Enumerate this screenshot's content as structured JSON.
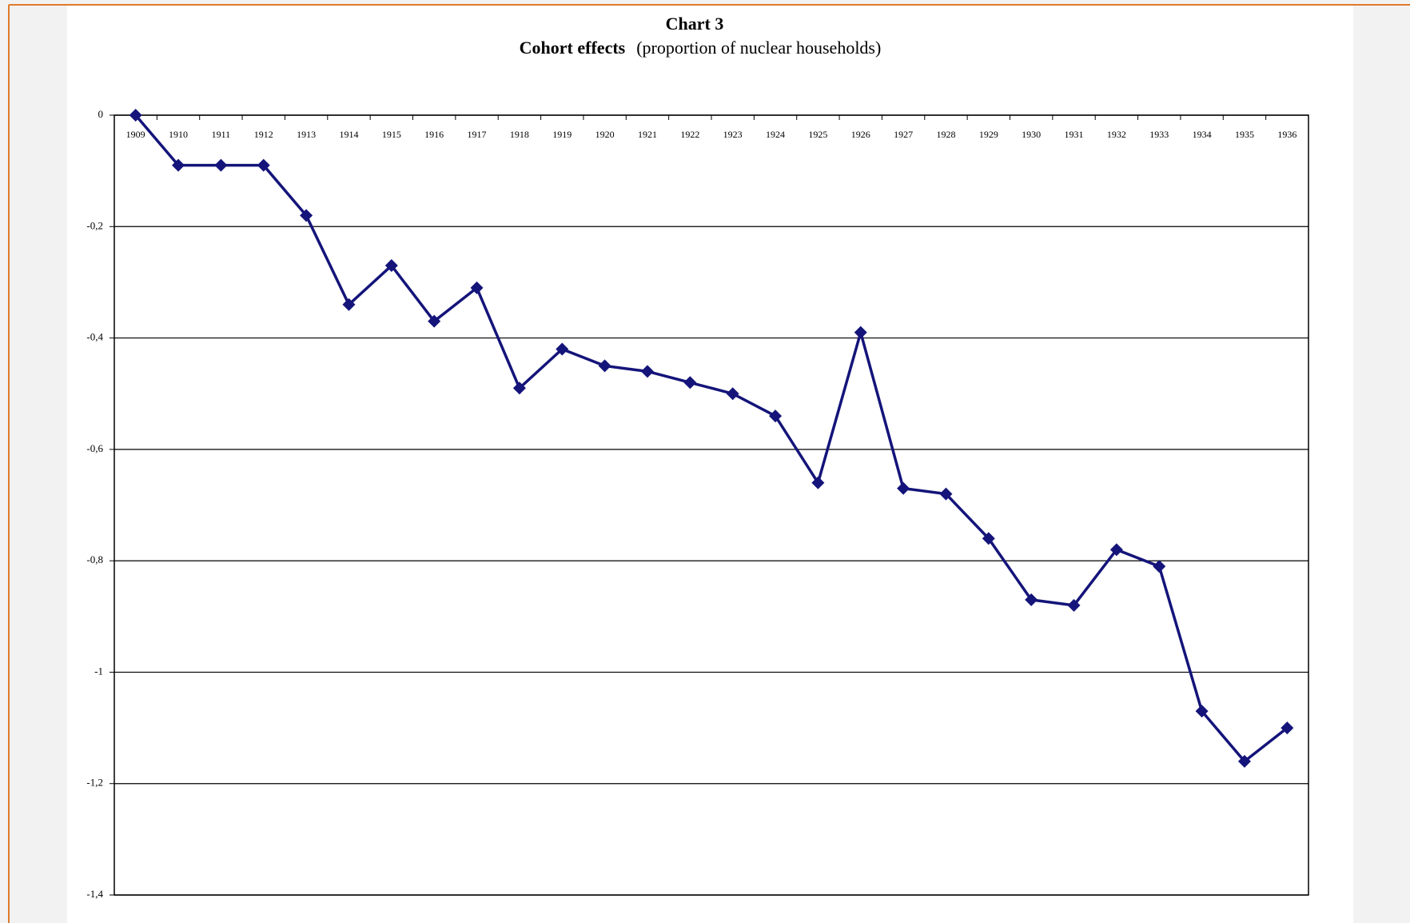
{
  "chart_data": {
    "type": "line",
    "title": "Chart 3",
    "subtitle_bold": "Cohort effects",
    "subtitle": "(proportion of nuclear households)",
    "categories": [
      "1909",
      "1910",
      "1911",
      "1912",
      "1913",
      "1914",
      "1915",
      "1916",
      "1917",
      "1918",
      "1919",
      "1920",
      "1921",
      "1922",
      "1923",
      "1924",
      "1925",
      "1926",
      "1927",
      "1928",
      "1929",
      "1930",
      "1931",
      "1932",
      "1933",
      "1934",
      "1935",
      "1936"
    ],
    "values": [
      0,
      -0.09,
      -0.09,
      -0.09,
      -0.18,
      -0.34,
      -0.27,
      -0.37,
      -0.31,
      -0.49,
      -0.42,
      -0.45,
      -0.46,
      -0.48,
      -0.5,
      -0.54,
      -0.66,
      -0.39,
      -0.67,
      -0.68,
      -0.76,
      -0.87,
      -0.88,
      -0.78,
      -0.81,
      -1.07,
      -1.16,
      -1.1
    ],
    "color": "#14147a",
    "ylim": [
      -1.4,
      0
    ],
    "yticks": [
      0,
      {
        "value": -0.2,
        "label": "-0,2"
      },
      {
        "value": -0.4,
        "label": "-0,4"
      },
      {
        "value": -0.6,
        "label": "-0,6"
      },
      {
        "value": -0.8,
        "label": "-0,8"
      },
      -1,
      {
        "value": -1.2,
        "label": "-1,2"
      },
      {
        "value": -1.4,
        "label": "-1,4"
      }
    ],
    "grid": true
  }
}
